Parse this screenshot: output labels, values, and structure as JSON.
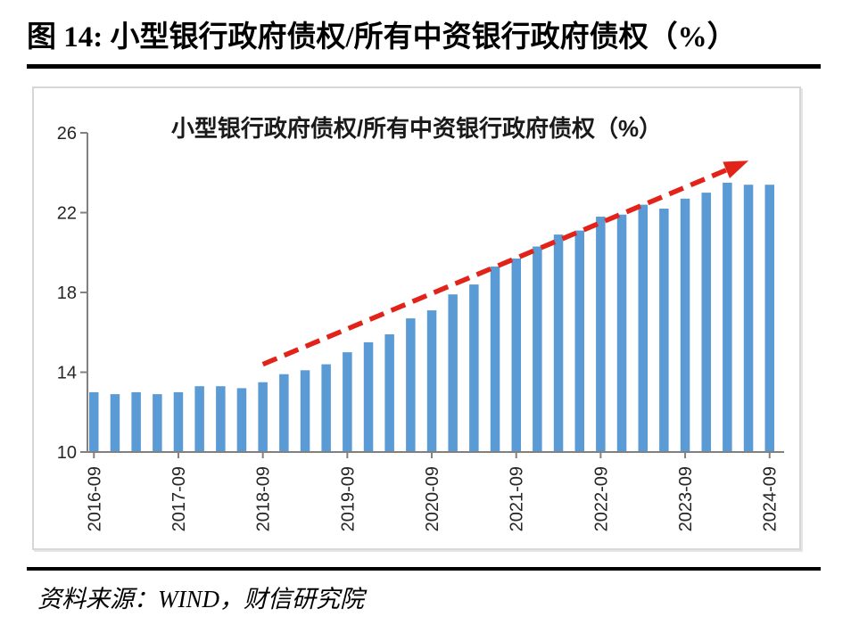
{
  "page": {
    "title": "图 14:  小型银行政府债权/所有中资银行政府债权（%）",
    "source_label": "资料来源：WIND，财信研究院"
  },
  "chart_data": {
    "type": "bar",
    "title": "小型银行政府债权/所有中资银行政府债权（%）",
    "categories": [
      "2016-09",
      "2016-12",
      "2017-03",
      "2017-06",
      "2017-09",
      "2017-12",
      "2018-03",
      "2018-06",
      "2018-09",
      "2018-12",
      "2019-03",
      "2019-06",
      "2019-09",
      "2019-12",
      "2020-03",
      "2020-06",
      "2020-09",
      "2020-12",
      "2021-03",
      "2021-06",
      "2021-09",
      "2021-12",
      "2022-03",
      "2022-06",
      "2022-09",
      "2022-12",
      "2023-03",
      "2023-06",
      "2023-09",
      "2023-12",
      "2024-03",
      "2024-06",
      "2024-09"
    ],
    "values": [
      13.0,
      12.9,
      13.0,
      12.9,
      13.0,
      13.3,
      13.3,
      13.2,
      13.5,
      13.9,
      14.1,
      14.4,
      15.0,
      15.5,
      15.9,
      16.7,
      17.1,
      17.9,
      18.4,
      19.3,
      19.7,
      20.3,
      20.9,
      21.1,
      21.8,
      21.9,
      22.4,
      22.2,
      22.7,
      23.0,
      23.5,
      23.4,
      23.4
    ],
    "x_tick_labels": [
      "2016-09",
      "2017-09",
      "2018-09",
      "2019-09",
      "2020-09",
      "2021-09",
      "2022-09",
      "2023-09",
      "2024-09"
    ],
    "x_tick_interval": 4,
    "yticks": [
      10,
      14,
      18,
      22,
      26
    ],
    "ylim": [
      10,
      26
    ],
    "xlabel": "",
    "ylabel": "",
    "grid": false,
    "legend": "none",
    "bar_color": "#5b9bd5",
    "axis_color": "#808080",
    "label_color": "#262626",
    "annotation": {
      "type": "trend-arrow",
      "style": "dashed",
      "color": "#e2231a",
      "from": {
        "index": 8,
        "value": 14.4
      },
      "to": {
        "index": 31,
        "value": 24.6
      }
    }
  }
}
